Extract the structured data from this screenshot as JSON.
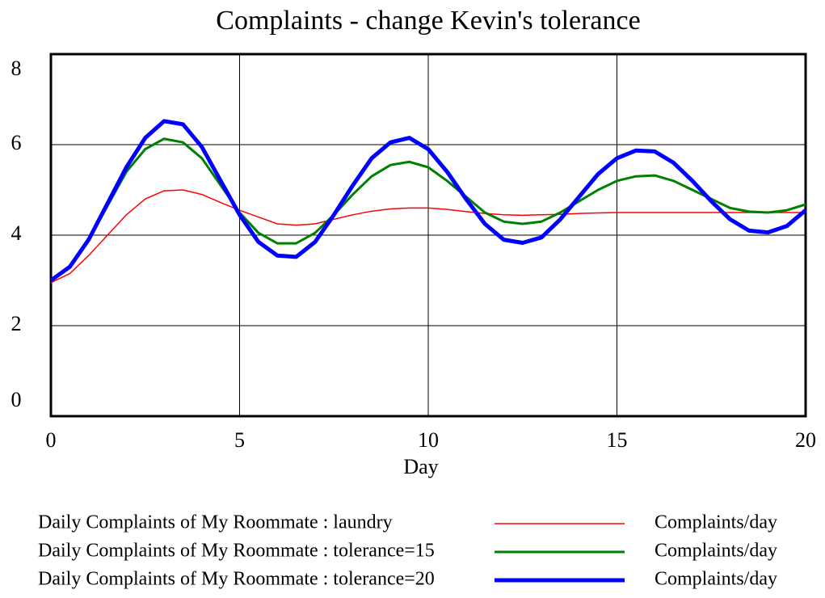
{
  "chart_data": {
    "type": "line",
    "title": "Complaints - change Kevin's tolerance",
    "x_label": "Day",
    "xlim": [
      0,
      20
    ],
    "xticks": [
      0,
      5,
      10,
      15,
      20
    ],
    "ylim": [
      0,
      8
    ],
    "yticks": [
      0,
      2,
      4,
      6,
      8
    ],
    "grid": true,
    "x": [
      0,
      0.5,
      1,
      1.5,
      2,
      2.5,
      3,
      3.5,
      4,
      4.5,
      5,
      5.5,
      6,
      6.5,
      7,
      7.5,
      8,
      8.5,
      9,
      9.5,
      10,
      10.5,
      11,
      11.5,
      12,
      12.5,
      13,
      13.5,
      14,
      14.5,
      15,
      15.5,
      16,
      16.5,
      17,
      17.5,
      18,
      18.5,
      19,
      19.5,
      20
    ],
    "series": [
      {
        "name": "Daily Complaints of My Roommate : laundry",
        "units": "Complaints/day",
        "color": "#ff0000",
        "width": 1.5,
        "values": [
          2.95,
          3.15,
          3.55,
          4.0,
          4.45,
          4.8,
          4.98,
          5.0,
          4.9,
          4.72,
          4.55,
          4.4,
          4.25,
          4.22,
          4.25,
          4.35,
          4.45,
          4.53,
          4.58,
          4.6,
          4.6,
          4.57,
          4.52,
          4.48,
          4.45,
          4.44,
          4.45,
          4.46,
          4.48,
          4.49,
          4.5,
          4.5,
          4.5,
          4.5,
          4.5,
          4.5,
          4.5,
          4.5,
          4.5,
          4.5,
          4.5
        ]
      },
      {
        "name": "Daily Complaints of My Roommate : tolerance=15",
        "units": "Complaints/day",
        "color": "#008000",
        "width": 3,
        "values": [
          3.0,
          3.3,
          3.9,
          4.65,
          5.4,
          5.9,
          6.13,
          6.05,
          5.7,
          5.1,
          4.5,
          4.05,
          3.82,
          3.82,
          4.05,
          4.45,
          4.9,
          5.3,
          5.55,
          5.62,
          5.5,
          5.2,
          4.85,
          4.5,
          4.3,
          4.25,
          4.3,
          4.5,
          4.75,
          5.0,
          5.2,
          5.3,
          5.32,
          5.2,
          5.0,
          4.8,
          4.6,
          4.52,
          4.5,
          4.55,
          4.68
        ]
      },
      {
        "name": "Daily Complaints of My Roommate : tolerance=20",
        "units": "Complaints/day",
        "color": "#0000ff",
        "width": 5,
        "values": [
          3.0,
          3.3,
          3.9,
          4.7,
          5.5,
          6.15,
          6.52,
          6.45,
          5.95,
          5.2,
          4.45,
          3.85,
          3.55,
          3.52,
          3.85,
          4.45,
          5.1,
          5.7,
          6.05,
          6.15,
          5.9,
          5.4,
          4.8,
          4.25,
          3.9,
          3.83,
          3.95,
          4.35,
          4.85,
          5.35,
          5.7,
          5.87,
          5.85,
          5.6,
          5.2,
          4.75,
          4.35,
          4.1,
          4.06,
          4.2,
          4.55
        ]
      }
    ]
  }
}
